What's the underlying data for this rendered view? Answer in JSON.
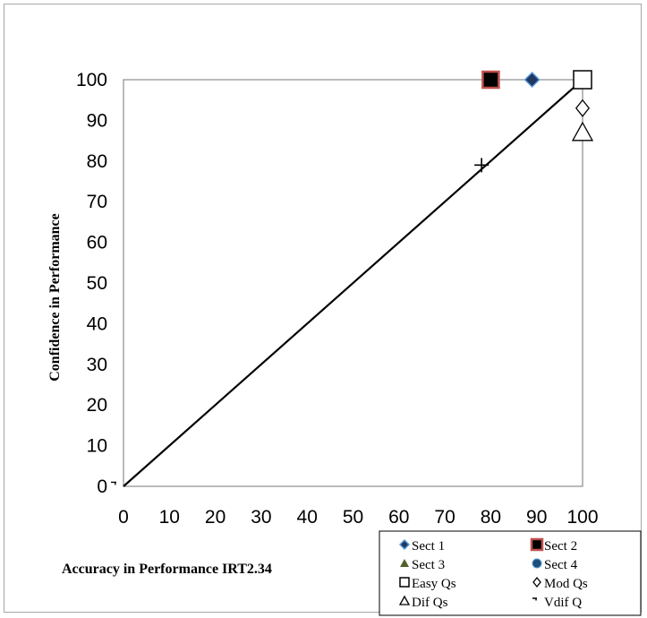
{
  "chart_data": {
    "type": "scatter",
    "xlabel": "Accuracy in Performance IRT2.34",
    "ylabel": "Confidence in Performance",
    "xlim": [
      0,
      100
    ],
    "ylim": [
      0,
      100
    ],
    "x_ticks": [
      "0",
      "10",
      "20",
      "30",
      "40",
      "50",
      "60",
      "70",
      "80",
      "90",
      "100"
    ],
    "y_ticks": [
      "0",
      "10",
      "20",
      "30",
      "40",
      "50",
      "60",
      "70",
      "80",
      "90",
      "100"
    ],
    "grid": false,
    "legend_position": "bottom-right",
    "reference_line": {
      "x": [
        0,
        100
      ],
      "y": [
        0,
        100
      ]
    },
    "series": [
      {
        "name": "Sect 1",
        "marker": "filled-diamond",
        "color": "#1f3864",
        "points": [
          [
            89,
            100
          ]
        ]
      },
      {
        "name": "Sect 2",
        "marker": "filled-square",
        "color": "#000000",
        "edge": "#c0504d",
        "points": [
          [
            80,
            100
          ]
        ]
      },
      {
        "name": "Sect 3",
        "marker": "filled-triangle",
        "color": "#4f6228",
        "points": []
      },
      {
        "name": "Sect 4",
        "marker": "filled-circle",
        "color": "#1f4e79",
        "points": []
      },
      {
        "name": "Easy Qs",
        "marker": "open-square",
        "color": "#000000",
        "points": [
          [
            100,
            100
          ]
        ]
      },
      {
        "name": "Mod Qs",
        "marker": "open-diamond",
        "color": "#000000",
        "points": [
          [
            100,
            93
          ]
        ]
      },
      {
        "name": "Dif Qs",
        "marker": "open-triangle",
        "color": "#000000",
        "points": [
          [
            100,
            87
          ]
        ]
      },
      {
        "name": "Vdif Q",
        "marker": "dash",
        "color": "#000000",
        "points": [
          [
            0,
            0
          ]
        ]
      },
      {
        "name": "",
        "marker": "plus",
        "color": "#000000",
        "points": [
          [
            78,
            79
          ]
        ]
      }
    ]
  }
}
